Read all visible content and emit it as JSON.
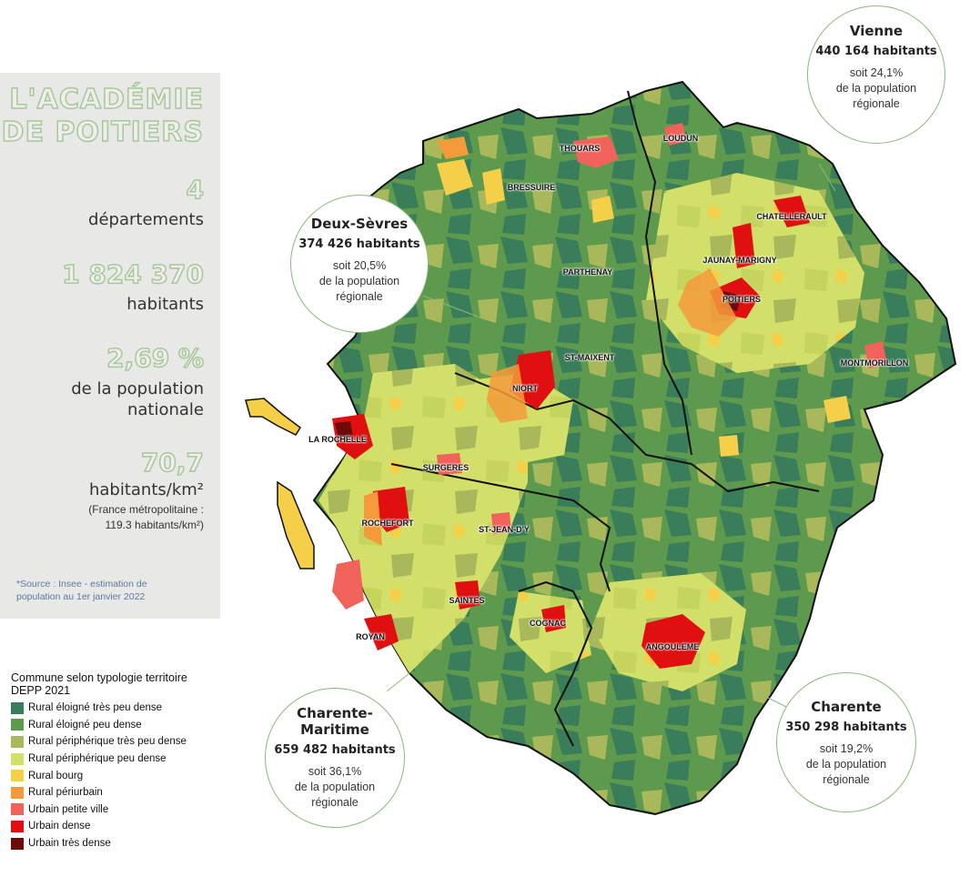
{
  "panel": {
    "title_line1": "L'ACADÉMIE",
    "title_line2": "DE POITIERS",
    "stats": [
      {
        "value": "4",
        "label": "départements"
      },
      {
        "value": "1 824 370",
        "label": "habitants"
      },
      {
        "value": "2,69 %",
        "label": "de la population nationale"
      },
      {
        "value": "70,7",
        "label": "habitants/km²"
      }
    ],
    "note_line1": "(France métropolitaine :",
    "note_line2": "119.3 habitants/km²)",
    "source_line1": "*Source : Insee - estimation de",
    "source_line2": "population au 1er janvier 2022"
  },
  "departments": [
    {
      "name": "Vienne",
      "population": "440 164 habitants",
      "share_line1": "soit 24,1%",
      "share_line2": "de la population",
      "share_line3": "régionale"
    },
    {
      "name": "Deux-Sèvres",
      "population": "374 426 habitants",
      "share_line1": "soit 20,5%",
      "share_line2": "de la population",
      "share_line3": "régionale"
    },
    {
      "name_line1": "Charente-",
      "name_line2": "Maritime",
      "population": "659 482 habitants",
      "share_line1": "soit 36,1%",
      "share_line2": "de la population",
      "share_line3": "régionale"
    },
    {
      "name": "Charente",
      "population": "350 298 habitants",
      "share_line1": "soit 19,2%",
      "share_line2": "de la population",
      "share_line3": "régionale"
    }
  ],
  "cities": [
    "THOUARS",
    "LOUDUN",
    "BRESSUIRE",
    "CHATELLERAULT",
    "JAUNAY-MARIGNY",
    "PARTHENAY",
    "POITIERS",
    "ST-MAIXENT",
    "MONTMORILLON",
    "NIORT",
    "LA ROCHELLE",
    "SURGERES",
    "ROCHEFORT",
    "ST-JEAN-D'Y",
    "SAINTES",
    "COGNAC",
    "ANGOULEME",
    "ROYAN"
  ],
  "legend": {
    "title_line1": "Commune selon typologie territoire",
    "title_line2": "DEPP 2021",
    "items": [
      {
        "label": "Rural éloigné très peu dense",
        "color": "#3a7d5a"
      },
      {
        "label": "Rural éloigné peu dense",
        "color": "#5e9a4e"
      },
      {
        "label": "Rural périphérique très peu dense",
        "color": "#a8b85a"
      },
      {
        "label": "Rural périphérique peu dense",
        "color": "#d2e06a"
      },
      {
        "label": "Rural bourg",
        "color": "#f6cf48"
      },
      {
        "label": "Rural périurbain",
        "color": "#f59a3a"
      },
      {
        "label": "Urbain petite ville",
        "color": "#f0625a"
      },
      {
        "label": "Urbain dense",
        "color": "#e01010"
      },
      {
        "label": "Urbain très dense",
        "color": "#6e0a0a"
      }
    ]
  }
}
